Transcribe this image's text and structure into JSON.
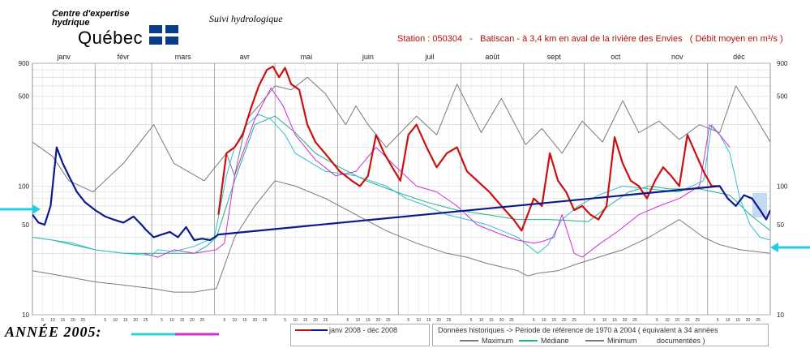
{
  "header": {
    "org_line1": "Centre d'expertise",
    "org_line2": "hydrique",
    "org_name": "Québec",
    "page_title": "Suivi hydrologique",
    "station": "Station : 050304   -   Batiscan - à 3,4 km en aval de la rivière des Envies   ( Débit moyen en m³/s )"
  },
  "annotation": {
    "year_label": "ANNÉE  2005:",
    "year_colors": [
      "#40d0e0",
      "#d040d0"
    ]
  },
  "legend": {
    "current_label": "janv 2008 - déc 2008",
    "historical_title": "Données historiques -> Période de référence  de 1970 à 2004   ( équivalent à 34 années",
    "historical_title2": "documentées )",
    "maximum": "Maximum",
    "mediane": "Médiane",
    "minimum": "Minimum"
  },
  "colors": {
    "current_red": "#cc1010",
    "current_blue": "#0a1a8a",
    "max_min": "#7a7a7a",
    "median": "#20b090",
    "y2005_cyan": "#30c0d0",
    "y2005_magenta": "#d030d0",
    "arrow": "#20d0e0"
  },
  "chart_data": {
    "type": "line",
    "y_scale": "log",
    "ylim": [
      10,
      900
    ],
    "y_ticks": [
      "900",
      "500",
      "100",
      "50",
      "10"
    ],
    "y_tick_values": [
      900,
      500,
      100,
      50,
      10
    ],
    "months": [
      "janv",
      "févr",
      "mars",
      "avr",
      "mai",
      "juin",
      "juil",
      "août",
      "sept",
      "oct",
      "nov",
      "déc"
    ],
    "day_ticks": [
      "5",
      "10",
      "15",
      "20",
      "25"
    ],
    "series": [
      {
        "name": "Maximum",
        "color": "#7a7a7a",
        "x": [
          0,
          10,
          18,
          30,
          45,
          60,
          70,
          85,
          96,
          100,
          106,
          112,
          120,
          128,
          136,
          145,
          155,
          160,
          166,
          175,
          190,
          200,
          210,
          222,
          232,
          244,
          252,
          262,
          272,
          282,
          292,
          300,
          310,
          320,
          330,
          340,
          348,
          356,
          365
        ],
        "y": [
          220,
          170,
          110,
          90,
          150,
          300,
          150,
          110,
          180,
          120,
          330,
          420,
          600,
          560,
          700,
          520,
          300,
          420,
          300,
          200,
          350,
          250,
          620,
          260,
          480,
          210,
          280,
          180,
          320,
          220,
          460,
          260,
          320,
          230,
          300,
          260,
          600,
          380,
          220
        ]
      },
      {
        "name": "Médiane",
        "color": "#20b090",
        "x": [
          0,
          10,
          20,
          31,
          45,
          59,
          70,
          80,
          86,
          91,
          100,
          110,
          120,
          130,
          140,
          152,
          165,
          180,
          195,
          210,
          225,
          240,
          255,
          265,
          275,
          285,
          295,
          305,
          315,
          330,
          345,
          355,
          365
        ],
        "y": [
          40,
          38,
          35,
          32,
          30,
          30,
          30,
          30,
          34,
          40,
          110,
          300,
          350,
          260,
          180,
          140,
          110,
          90,
          75,
          65,
          60,
          55,
          55,
          54,
          53,
          70,
          90,
          100,
          95,
          95,
          85,
          60,
          45
        ]
      },
      {
        "name": "Minimum",
        "color": "#7a7a7a",
        "x": [
          0,
          15,
          31,
          45,
          59,
          70,
          80,
          91,
          100,
          110,
          120,
          130,
          145,
          160,
          175,
          190,
          205,
          215,
          225,
          240,
          245,
          250,
          260,
          270,
          280,
          292,
          305,
          320,
          332,
          340,
          350,
          365
        ],
        "y": [
          22,
          20,
          18,
          17,
          16,
          15,
          15,
          16,
          40,
          70,
          110,
          100,
          80,
          60,
          45,
          36,
          30,
          28,
          25,
          22,
          20,
          21,
          22,
          25,
          28,
          32,
          40,
          55,
          40,
          35,
          32,
          30
        ]
      },
      {
        "name": "2005",
        "color": "#30c0d0",
        "x": [
          0,
          10,
          20,
          31,
          45,
          59,
          62,
          70,
          80,
          90,
          96,
          100,
          106,
          112,
          118,
          125,
          130,
          145,
          160,
          175,
          185,
          195,
          205,
          215,
          225,
          240,
          250,
          255,
          262,
          270,
          280,
          292,
          305,
          320,
          332,
          336,
          340,
          345,
          350,
          355,
          360,
          365
        ],
        "y": [
          40,
          38,
          36,
          32,
          30,
          29,
          32,
          31,
          34,
          40,
          120,
          200,
          300,
          360,
          330,
          250,
          180,
          130,
          120,
          100,
          80,
          70,
          60,
          55,
          50,
          40,
          30,
          35,
          55,
          70,
          85,
          100,
          95,
          90,
          110,
          300,
          250,
          180,
          80,
          50,
          40,
          38
        ]
      },
      {
        "name": "2005 (2)",
        "color": "#d030d0",
        "x": [
          55,
          62,
          70,
          80,
          91,
          95,
          100,
          110,
          118,
          124,
          130,
          140,
          150,
          160,
          170,
          180,
          190,
          200,
          210,
          220,
          232,
          240,
          248,
          252,
          258,
          262,
          268,
          272,
          280,
          290,
          300,
          310,
          320,
          330,
          335,
          340,
          345
        ],
        "y": [
          30,
          28,
          32,
          30,
          32,
          36,
          120,
          330,
          580,
          420,
          250,
          160,
          120,
          130,
          200,
          140,
          100,
          90,
          70,
          50,
          42,
          38,
          36,
          37,
          40,
          60,
          30,
          28,
          35,
          45,
          60,
          70,
          80,
          100,
          300,
          250,
          200
        ]
      },
      {
        "name": "janv 2008 - déc 2008 (rouge)",
        "color": "#cc1010",
        "x": [
          92,
          96,
          100,
          104,
          108,
          112,
          116,
          119,
          122,
          125,
          128,
          132,
          136,
          140,
          146,
          152,
          158,
          162,
          166,
          170,
          174,
          178,
          182,
          186,
          190,
          195,
          200,
          205,
          210,
          215,
          220,
          226,
          232,
          238,
          242,
          245,
          248,
          252,
          256,
          260,
          264,
          268,
          272,
          276,
          280,
          284,
          288,
          292,
          296,
          300,
          304,
          308,
          312,
          316,
          320,
          324,
          328,
          332,
          336,
          340
        ],
        "y": [
          60,
          180,
          200,
          250,
          400,
          600,
          800,
          850,
          700,
          830,
          620,
          560,
          300,
          220,
          170,
          130,
          110,
          100,
          120,
          250,
          180,
          140,
          110,
          250,
          300,
          200,
          140,
          180,
          200,
          130,
          110,
          90,
          70,
          55,
          45,
          60,
          80,
          70,
          180,
          110,
          90,
          65,
          70,
          60,
          55,
          70,
          240,
          150,
          110,
          100,
          80,
          110,
          140,
          120,
          100,
          250,
          180,
          130,
          100,
          100
        ]
      },
      {
        "name": "janv 2008 - déc 2008 (bleu)",
        "color": "#0a1a8a",
        "x": [
          0,
          3,
          6,
          9,
          12,
          15,
          18,
          22,
          26,
          31,
          36,
          40,
          45,
          50,
          54,
          56,
          60,
          64,
          68,
          72,
          76,
          80,
          84,
          88,
          92,
          340,
          344,
          348,
          352,
          356,
          360,
          363,
          365
        ],
        "y": [
          60,
          52,
          50,
          70,
          200,
          150,
          120,
          90,
          75,
          65,
          58,
          55,
          52,
          58,
          50,
          46,
          40,
          42,
          44,
          40,
          48,
          38,
          39,
          38,
          42,
          100,
          80,
          70,
          85,
          80,
          65,
          55,
          65
        ]
      }
    ]
  }
}
